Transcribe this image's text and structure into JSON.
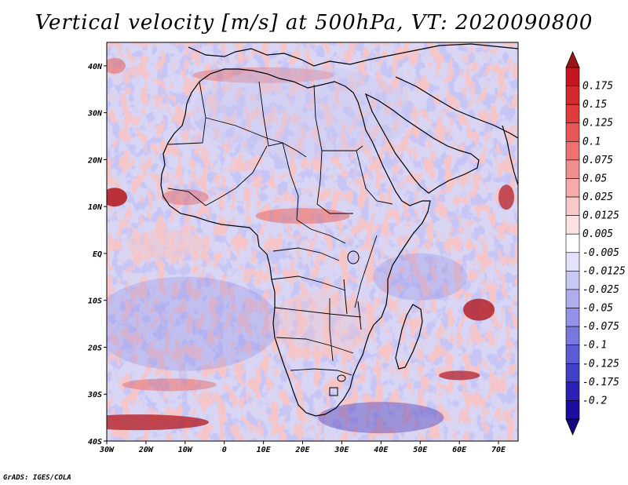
{
  "title": "Vertical velocity [m/s] at 500hPa, VT: 2020090800",
  "credit": "GrADS: IGES/COLA",
  "map": {
    "lon_range": [
      -30,
      75
    ],
    "lat_range": [
      -40,
      45
    ],
    "lon_ticks": [
      {
        "value": -30,
        "label": "30W"
      },
      {
        "value": -20,
        "label": "20W"
      },
      {
        "value": -10,
        "label": "10W"
      },
      {
        "value": 0,
        "label": "0"
      },
      {
        "value": 10,
        "label": "10E"
      },
      {
        "value": 20,
        "label": "20E"
      },
      {
        "value": 30,
        "label": "30E"
      },
      {
        "value": 40,
        "label": "40E"
      },
      {
        "value": 50,
        "label": "50E"
      },
      {
        "value": 60,
        "label": "60E"
      },
      {
        "value": 70,
        "label": "70E"
      }
    ],
    "lat_ticks": [
      {
        "value": 40,
        "label": "40N"
      },
      {
        "value": 30,
        "label": "30N"
      },
      {
        "value": 20,
        "label": "20N"
      },
      {
        "value": 10,
        "label": "10N"
      },
      {
        "value": 0,
        "label": "EQ"
      },
      {
        "value": -10,
        "label": "10S"
      },
      {
        "value": -20,
        "label": "20S"
      },
      {
        "value": -30,
        "label": "30S"
      },
      {
        "value": -40,
        "label": "40S"
      }
    ],
    "colors": {
      "strong_positive": "#b0161e",
      "positive": "#e56a6a",
      "weak_positive": "#f6c4c4",
      "neutral": "#ffffff",
      "weak_negative": "#c9c9f4",
      "negative": "#7d7de4",
      "strong_negative": "#2a1aa8",
      "coastline": "#000000"
    }
  },
  "colorbar": {
    "levels": [
      {
        "label": "0.175",
        "color": "#c4161c"
      },
      {
        "label": "0.15",
        "color": "#d42a2e"
      },
      {
        "label": "0.125",
        "color": "#e03c3c"
      },
      {
        "label": "0.1",
        "color": "#e85656"
      },
      {
        "label": "0.075",
        "color": "#ee7272"
      },
      {
        "label": "0.05",
        "color": "#f28e8e"
      },
      {
        "label": "0.025",
        "color": "#f6aaaa"
      },
      {
        "label": "0.0125",
        "color": "#f9c8c8"
      },
      {
        "label": "0.005",
        "color": "#fce2e2"
      },
      {
        "label": "-0.005",
        "color": "#ffffff"
      },
      {
        "label": "-0.0125",
        "color": "#e2e2fb"
      },
      {
        "label": "-0.025",
        "color": "#c8c8f5"
      },
      {
        "label": "-0.05",
        "color": "#aeaeef"
      },
      {
        "label": "-0.075",
        "color": "#9292e8"
      },
      {
        "label": "-0.1",
        "color": "#7878e0"
      },
      {
        "label": "-0.125",
        "color": "#5c5cd6"
      },
      {
        "label": "-0.175",
        "color": "#4040c8"
      },
      {
        "label": "-0.2",
        "color": "#2a22b4"
      },
      {
        "label": "",
        "color": "#1a0ea0"
      }
    ],
    "top_arrow_color": "#9e1414",
    "bottom_arrow_color": "#14087e"
  }
}
